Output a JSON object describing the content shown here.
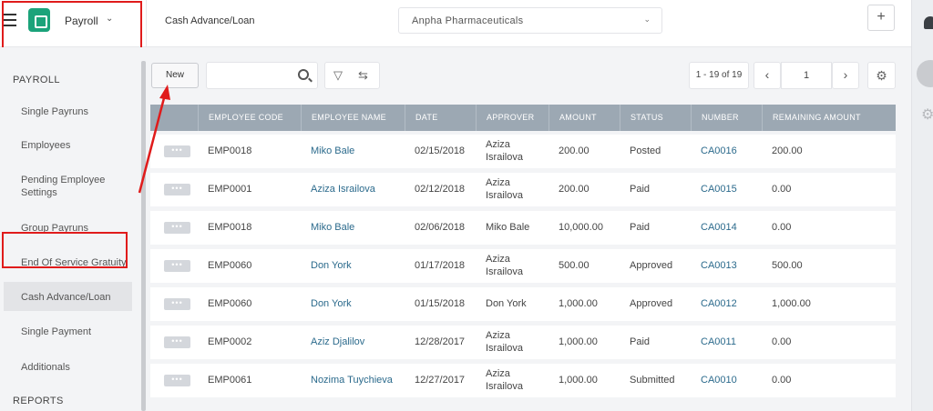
{
  "app": {
    "name": "Payroll"
  },
  "header": {
    "page_title": "Cash Advance/Loan",
    "company": "Anpha Pharmaceuticals",
    "add_label": "+"
  },
  "sidebar": {
    "headings": [
      "PAYROLL",
      "REPORTS"
    ],
    "items": [
      {
        "label": "Single Payruns"
      },
      {
        "label": "Employees"
      },
      {
        "label": "Pending Employee Settings"
      },
      {
        "label": "Group Payruns"
      },
      {
        "label": "End Of Service Gratuity"
      },
      {
        "label": "Cash Advance/Loan",
        "active": true
      },
      {
        "label": "Single Payment"
      },
      {
        "label": "Additionals"
      }
    ]
  },
  "toolbar": {
    "new_label": "New",
    "search_value": ""
  },
  "pager": {
    "range": "1 - 19 of 19",
    "page": "1"
  },
  "table": {
    "columns": [
      "EMPLOYEE CODE",
      "EMPLOYEE NAME",
      "DATE",
      "APPROVER",
      "AMOUNT",
      "STATUS",
      "NUMBER",
      "REMAINING AMOUNT"
    ],
    "rows": [
      {
        "code": "EMP0018",
        "name": "Miko Bale",
        "date": "02/15/2018",
        "approver": "Aziza Israilova",
        "amount": "200.00",
        "status": "Posted",
        "number": "CA0016",
        "remaining": "200.00"
      },
      {
        "code": "EMP0001",
        "name": "Aziza Israilova",
        "date": "02/12/2018",
        "approver": "Aziza Israilova",
        "amount": "200.00",
        "status": "Paid",
        "number": "CA0015",
        "remaining": "0.00"
      },
      {
        "code": "EMP0018",
        "name": "Miko Bale",
        "date": "02/06/2018",
        "approver": "Miko Bale",
        "amount": "10,000.00",
        "status": "Paid",
        "number": "CA0014",
        "remaining": "0.00"
      },
      {
        "code": "EMP0060",
        "name": "Don York",
        "date": "01/17/2018",
        "approver": "Aziza Israilova",
        "amount": "500.00",
        "status": "Approved",
        "number": "CA0013",
        "remaining": "500.00"
      },
      {
        "code": "EMP0060",
        "name": "Don York",
        "date": "01/15/2018",
        "approver": "Don York",
        "amount": "1,000.00",
        "status": "Approved",
        "number": "CA0012",
        "remaining": "1,000.00"
      },
      {
        "code": "EMP0002",
        "name": "Aziz Djalilov",
        "date": "12/28/2017",
        "approver": "Aziza Israilova",
        "amount": "1,000.00",
        "status": "Paid",
        "number": "CA0011",
        "remaining": "0.00"
      },
      {
        "code": "EMP0061",
        "name": "Nozima Tuychieva",
        "date": "12/27/2017",
        "approver": "Aziza Israilova",
        "amount": "1,000.00",
        "status": "Submitted",
        "number": "CA0010",
        "remaining": "0.00"
      }
    ]
  },
  "colors": {
    "accent": "#1ba37a",
    "link": "#2b6a8c",
    "header_bg": "#9ca8b3",
    "annotation": "#e01b1b"
  }
}
